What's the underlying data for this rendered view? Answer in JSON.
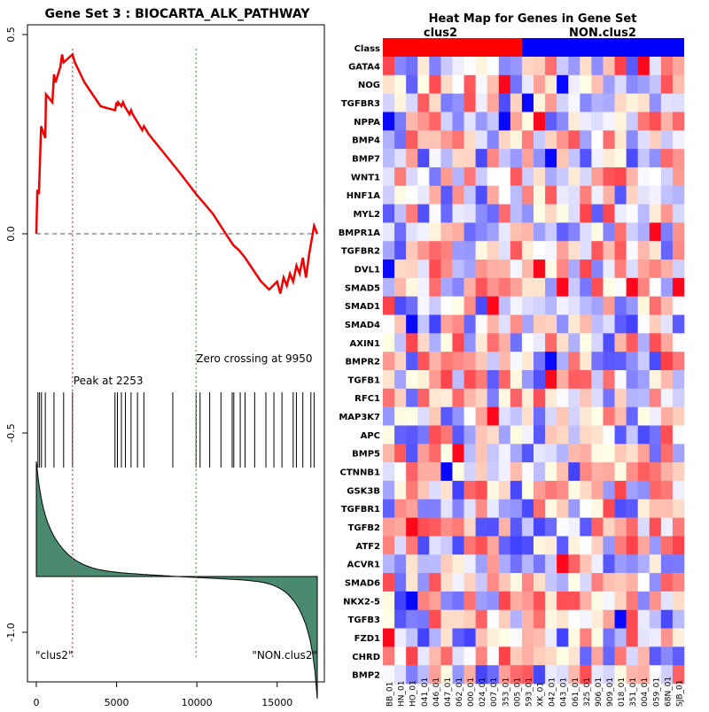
{
  "gsea": {
    "title": "Gene Set  3 : BIOCARTA_ALK_PATHWAY",
    "peak_label": "Peak at 2253",
    "zero_label": "Zero crossing at 9950",
    "left_label": "\"clus2\"",
    "right_label": "\"NON.clus2\""
  },
  "heatmap": {
    "title": "Heat Map for Genes in Gene Set",
    "class_label": "Class",
    "group1": "clus2",
    "group2": "NON.clus2",
    "group1_color": "#ff0000",
    "group2_color": "#0000ff",
    "genes": [
      "GATA4",
      "NOG",
      "TGFBR3",
      "NPPA",
      "BMP4",
      "BMP7",
      "WNT1",
      "HNF1A",
      "MYL2",
      "BMPR1A",
      "TGFBR2",
      "DVL1",
      "SMAD5",
      "SMAD1",
      "SMAD4",
      "AXIN1",
      "BMPR2",
      "TGFB1",
      "RFC1",
      "MAP3K7",
      "APC",
      "BMP5",
      "CTNNB1",
      "GSK3B",
      "TGFBR1",
      "TGFB2",
      "ATF2",
      "ACVR1",
      "SMAD6",
      "NKX2-5",
      "TGFB3",
      "FZD1",
      "CHRD",
      "BMP2"
    ],
    "samples": [
      "BB_01",
      "HN_01",
      "HO_01",
      "041_01",
      "046_01",
      "047_01",
      "062_01",
      "000_01",
      "024_01",
      "007_01",
      "353_01",
      "005_01",
      "593_01",
      "XK_01",
      "042_01",
      "043_01",
      "061_01",
      "325_01",
      "906_01",
      "909_01",
      "018_01",
      "351_01",
      "004_01",
      "059_01",
      "68N_01",
      "SJB_01"
    ]
  },
  "chart_data": {
    "type": "line",
    "title": "Gene Set  3 : BIOCARTA_ALK_PATHWAY",
    "xlim": [
      0,
      17500
    ],
    "ylim": [
      -1.05,
      0.52
    ],
    "x_ticks": [
      0,
      5000,
      10000,
      15000
    ],
    "y_ticks": [
      -1.0,
      -0.5,
      0.0,
      0.5
    ],
    "x_tick_labels": [
      "0",
      "5000",
      "10000",
      "15000"
    ],
    "y_tick_labels": [
      "-1.0",
      "-0.5",
      "0.0",
      "0.5"
    ],
    "peak_x": 2253,
    "zero_crossing_x": 9950,
    "running_es": {
      "x": [
        0,
        60,
        160,
        300,
        560,
        600,
        1000,
        1100,
        1200,
        1500,
        1600,
        1700,
        2253,
        2400,
        3000,
        4000,
        4900,
        5000,
        5050,
        5100,
        5300,
        5400,
        5500,
        5800,
        5900,
        6000,
        6600,
        6700,
        7000,
        8000,
        9000,
        9950,
        11000,
        11800,
        12300,
        12600,
        13000,
        13500,
        14000,
        14500,
        15000,
        15200,
        15400,
        15600,
        15800,
        16000,
        16200,
        16400,
        16600,
        16800,
        17000,
        17300,
        17500
      ],
      "y": [
        0.0,
        0.11,
        0.1,
        0.27,
        0.24,
        0.35,
        0.33,
        0.4,
        0.38,
        0.42,
        0.45,
        0.43,
        0.45,
        0.43,
        0.38,
        0.32,
        0.31,
        0.33,
        0.32,
        0.33,
        0.32,
        0.33,
        0.32,
        0.3,
        0.31,
        0.3,
        0.26,
        0.27,
        0.25,
        0.2,
        0.15,
        0.1,
        0.05,
        0.0,
        -0.03,
        -0.04,
        -0.06,
        -0.09,
        -0.12,
        -0.14,
        -0.12,
        -0.15,
        -0.11,
        -0.13,
        -0.1,
        -0.12,
        -0.08,
        -0.1,
        -0.06,
        -0.11,
        -0.05,
        0.02,
        0.0
      ]
    },
    "hits": [
      100,
      200,
      320,
      560,
      1100,
      1700,
      2253,
      4900,
      5050,
      5300,
      5550,
      5900,
      6300,
      6700,
      8500,
      9950,
      10200,
      10800,
      11500,
      12200,
      12300,
      12700,
      13000,
      13600,
      14300,
      14800,
      15300,
      16000,
      16200,
      16600,
      17100,
      17300
    ]
  }
}
